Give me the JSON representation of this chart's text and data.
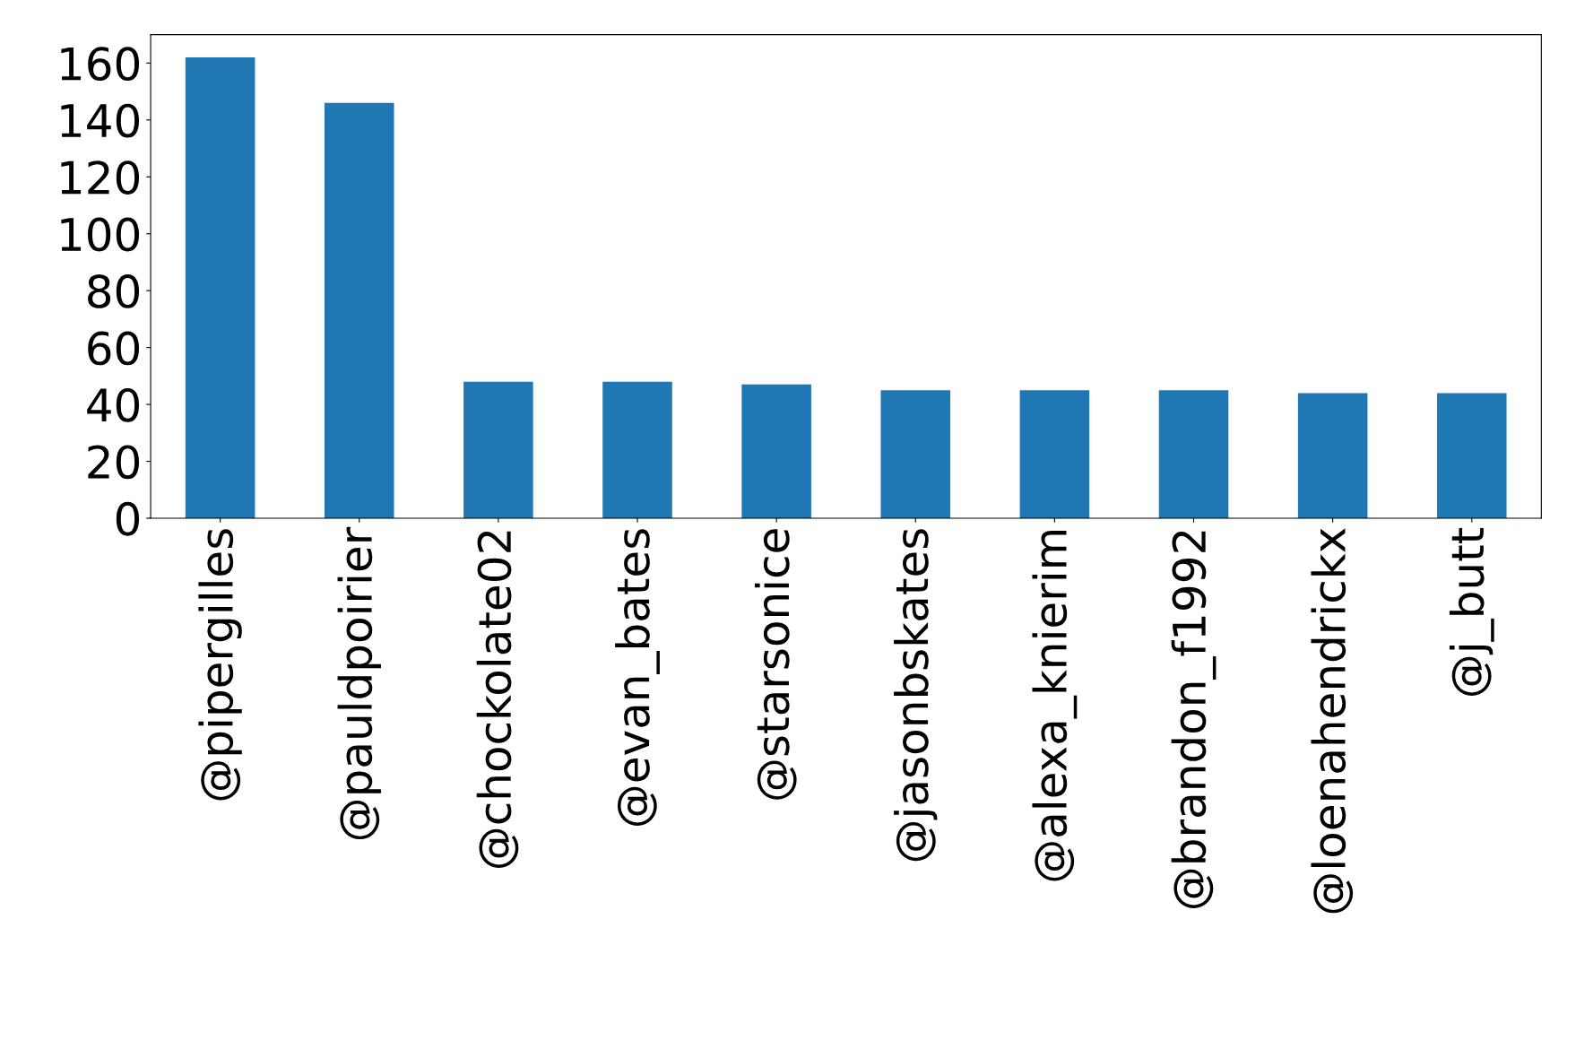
{
  "chart_data": {
    "type": "bar",
    "categories": [
      "@pipergilles",
      "@pauldpoirier",
      "@chockolate02",
      "@evan_bates",
      "@starsonice",
      "@jasonbskates",
      "@alexa_knierim",
      "@brandon_f1992",
      "@loenahendrickx",
      "@j_butt"
    ],
    "values": [
      162,
      146,
      48,
      48,
      47,
      45,
      45,
      45,
      44,
      44
    ],
    "color": "#1f77b4",
    "ylim": [
      0,
      170
    ],
    "yticks": [
      0,
      20,
      40,
      60,
      80,
      100,
      120,
      140,
      160
    ],
    "grid": false,
    "legend": false
  }
}
